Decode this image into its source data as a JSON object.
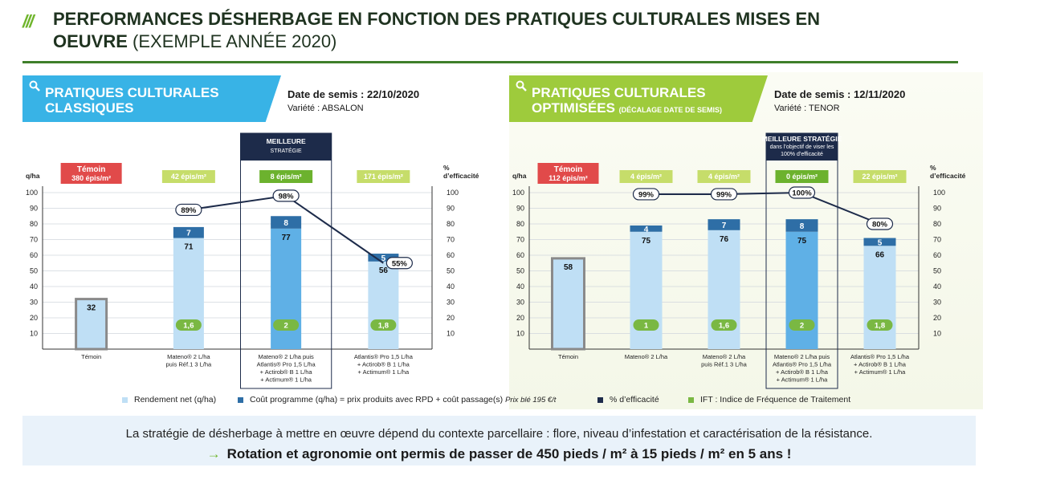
{
  "header": {
    "title_main": "PERFORMANCES DÉSHERBAGE EN FONCTION DES PRATIQUES CULTURALES MISES EN OEUVRE",
    "title_sub": "(EXEMPLE ANNÉE 2020)"
  },
  "colors": {
    "title": "#1f3320",
    "rule": "#3f7f2a",
    "banner_left": "#38b3e6",
    "banner_right": "#9ecb3c",
    "rendement": "#bfdff5",
    "rendement_best": "#5fb0e6",
    "cout": "#2e6ea6",
    "efficacite": "#1d2b4a",
    "ift": "#7ab843",
    "temoin": "#e14a4a",
    "epis_badge": "#c6dd6a",
    "best_badge": "#6cb22e",
    "best_box": "#1d2b4a"
  },
  "panels": [
    {
      "title_line1": "PRATIQUES CULTURALES",
      "title_line2": "CLASSIQUES",
      "title_small": "",
      "date": "Date de semis : 22/10/2020",
      "variety": "Variété : ABSALON",
      "chart_data": {
        "type": "bar",
        "title": "",
        "ylabel": "q/ha",
        "y2label": "% d’efficacité",
        "ylim": [
          0,
          100
        ],
        "y2lim": [
          0,
          100
        ],
        "yticks": [
          10,
          20,
          30,
          40,
          50,
          60,
          70,
          80,
          90,
          100
        ],
        "grid": true,
        "categories": [
          [
            "Témoin"
          ],
          [
            "Mateno® 2 L/ha",
            "puis Réf.1 3 L/ha"
          ],
          [
            "Mateno® 2 L/ha puis",
            "Atlantis® Pro 1,5 L/ha",
            "+ Actirob® B 1 L/ha",
            "+ Actimum® 1 L/ha"
          ],
          [
            "Atlantis® Pro 1,5 L/ha",
            "+ Actirob® B 1 L/ha",
            "+ Actimum® 1 L/ha"
          ]
        ],
        "epis_labels": [
          "Témoin\n380 épis/m²",
          "42 épis/m²",
          "8 épis/m²",
          "171 épis/m²"
        ],
        "series": [
          {
            "name": "Rendement net (q/ha)",
            "values": [
              32,
              71,
              77,
              56
            ]
          },
          {
            "name": "Coût programme (q/ha) = prix produits avec RPD + coût passage(s)",
            "values": [
              null,
              7,
              8,
              5
            ]
          },
          {
            "name": "% d’efficacité",
            "values": [
              null,
              89,
              98,
              55
            ],
            "labels": [
              "",
              "89%",
              "98%",
              "55%"
            ]
          },
          {
            "name": "IFT : Indice de Fréquence de Traitement",
            "labels": [
              "",
              "1,6",
              "2",
              "1,8"
            ]
          }
        ],
        "best_index": 2,
        "best_label": [
          "MEILLEURE",
          "STRATÉGIE"
        ]
      }
    },
    {
      "title_line1": "PRATIQUES CULTURALES",
      "title_line2": "OPTIMISÉES",
      "title_small": "(DÉCALAGE DATE DE SEMIS)",
      "date": "Date de semis : 12/11/2020",
      "variety": "Variété : TENOR",
      "chart_data": {
        "type": "bar",
        "title": "",
        "ylabel": "q/ha",
        "y2label": "% d’efficacité",
        "ylim": [
          0,
          100
        ],
        "y2lim": [
          0,
          100
        ],
        "yticks": [
          10,
          20,
          30,
          40,
          50,
          60,
          70,
          80,
          90,
          100
        ],
        "grid": true,
        "categories": [
          [
            "Témoin"
          ],
          [
            "Mateno® 2 L/ha"
          ],
          [
            "Mateno® 2 L/ha",
            "puis Réf.1 3 L/ha"
          ],
          [
            "Mateno® 2 L/ha puis",
            "Atlantis® Pro 1,5 L/ha",
            "+ Actirob® B 1 L/ha",
            "+ Actimum® 1 L/ha"
          ],
          [
            "Atlantis® Pro 1,5 L/ha",
            "+ Actirob® B 1 L/ha",
            "+ Actimum® 1 L/ha"
          ]
        ],
        "epis_labels": [
          "Témoin\n112 épis/m²",
          "4 épis/m²",
          "4 épis/m²",
          "0 épis/m²",
          "22 épis/m²"
        ],
        "series": [
          {
            "name": "Rendement net (q/ha)",
            "values": [
              58,
              75,
              76,
              75,
              66
            ]
          },
          {
            "name": "Coût programme (q/ha) = prix produits avec RPD + coût passage(s)",
            "values": [
              null,
              4,
              7,
              8,
              5
            ]
          },
          {
            "name": "% d’efficacité",
            "values": [
              null,
              99,
              99,
              100,
              80
            ],
            "labels": [
              "",
              "99%",
              "99%",
              "100%",
              "80%"
            ]
          },
          {
            "name": "IFT : Indice de Fréquence de Traitement",
            "labels": [
              "",
              "1",
              "1,6",
              "2",
              "1,8"
            ]
          }
        ],
        "best_index": 3,
        "best_label": [
          "MEILLEURE STRATÉGIE",
          "dans l’objectif de viser les",
          "100% d’efficacité"
        ]
      }
    }
  ],
  "legend": {
    "rendement": "Rendement net (q/ha)",
    "cout": "Coût programme (q/ha) = prix produits avec RPD + coût passage(s)",
    "prix": "Prix blé 195 €/t",
    "efficacite": "% d’efficacité",
    "ift": "IFT : Indice de Fréquence de Traitement"
  },
  "note": {
    "line1": "La stratégie de désherbage à mettre en œuvre dépend du contexte parcellaire : flore, niveau d’infestation et caractérisation de la résistance.",
    "arrow": "→",
    "line2": "Rotation et agronomie ont permis de passer de 450 pieds / m² à 15 pieds / m² en 5 ans !"
  }
}
